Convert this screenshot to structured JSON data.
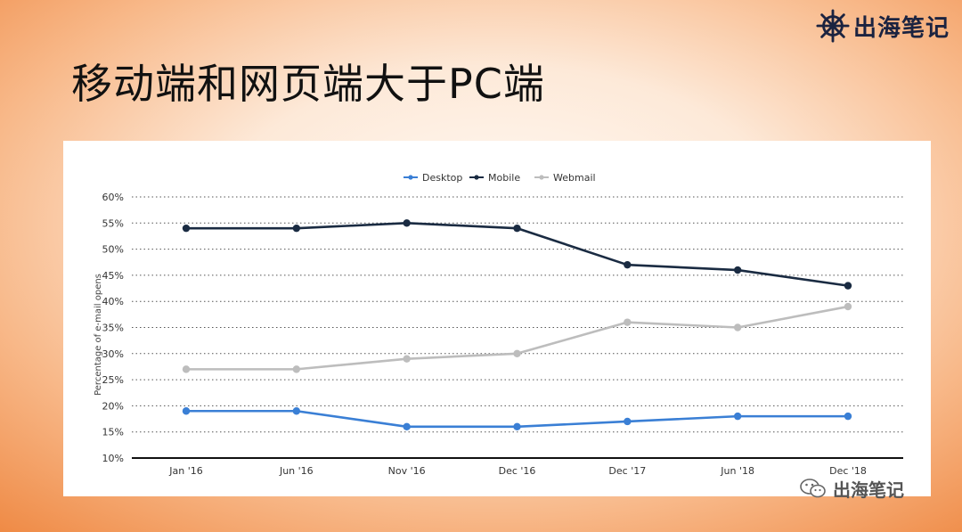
{
  "slide": {
    "title": "移动端和网页端大于PC端",
    "logo_text": "出海笔记",
    "watermark_text": "出海笔记"
  },
  "chart_data": {
    "type": "line",
    "categories": [
      "Jan '16",
      "Jun '16",
      "Nov '16",
      "Dec '16",
      "Dec '17",
      "Jun '18",
      "Dec '18"
    ],
    "series": [
      {
        "name": "Desktop",
        "color": "#3a7fd5",
        "values": [
          19,
          19,
          16,
          16,
          17,
          18,
          18
        ]
      },
      {
        "name": "Mobile",
        "color": "#1a2b42",
        "values": [
          54,
          54,
          55,
          54,
          47,
          46,
          43
        ]
      },
      {
        "name": "Webmail",
        "color": "#bdbdbd",
        "values": [
          27,
          27,
          29,
          30,
          36,
          35,
          39
        ]
      }
    ],
    "ylabel": "Percentage of e-mail opens",
    "ylim": [
      10,
      60
    ],
    "yticks": [
      "10%",
      "15%",
      "20%",
      "25%",
      "30%",
      "35%",
      "40%",
      "45%",
      "50%",
      "55%",
      "60%"
    ],
    "grid": true,
    "legend_position": "top-center"
  }
}
